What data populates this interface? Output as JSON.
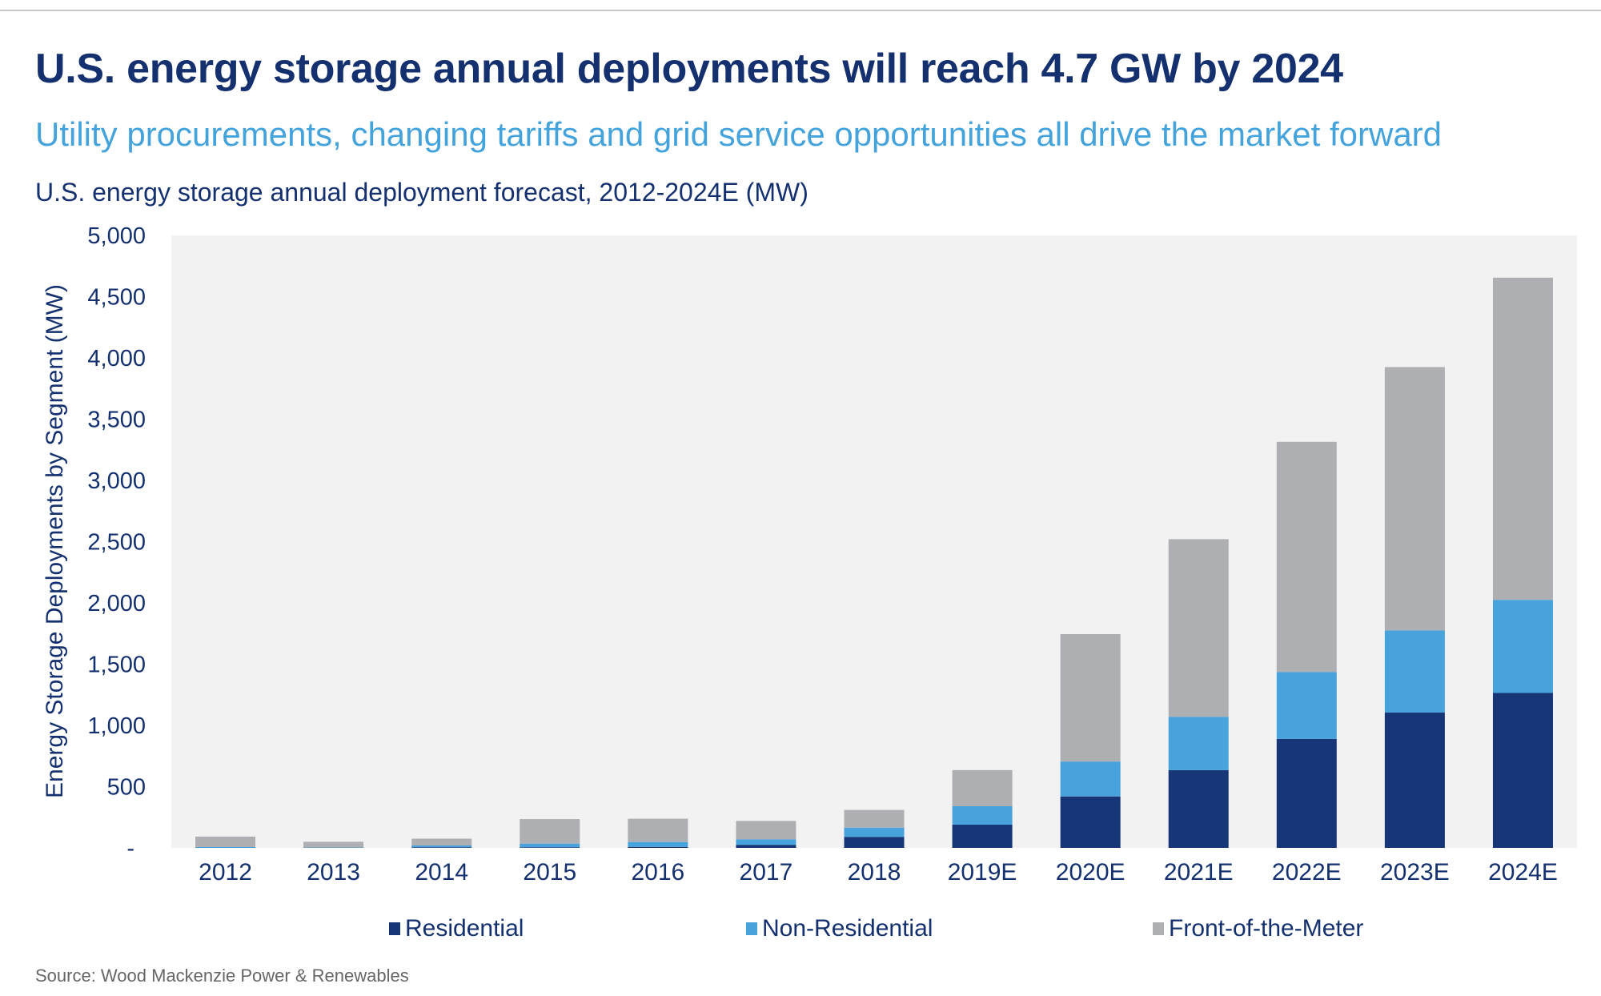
{
  "header": {
    "title": "U.S. energy storage annual deployments will reach 4.7 GW by 2024",
    "subtitle": "Utility procurements, changing tariffs and grid service opportunities all drive the market forward",
    "chart_title": "U.S. energy storage annual deployment forecast, 2012-2024E (MW)"
  },
  "footer": {
    "source": "Source: Wood Mackenzie Power & Renewables"
  },
  "colors": {
    "Residential": "#163677",
    "Non-Residential": "#48a3dd",
    "Front-of-the-Meter": "#aeafb3",
    "plot_background": "#f2f2f2",
    "title": "#14306e",
    "subtitle": "#45a3dc"
  },
  "chart_data": {
    "type": "bar",
    "stacked": true,
    "title": "U.S. energy storage annual deployment forecast, 2012-2024E (MW)",
    "xlabel": "",
    "ylabel": "Energy Storage Deployments by Segment (MW)",
    "ylim": [
      0,
      5000
    ],
    "yticks": [
      0,
      500,
      1000,
      1500,
      2000,
      2500,
      3000,
      3500,
      4000,
      4500,
      5000
    ],
    "ytick_labels": [
      "-",
      "500",
      "1,000",
      "1,500",
      "2,000",
      "2,500",
      "3,000",
      "3,500",
      "4,000",
      "4,500",
      "5,000"
    ],
    "grid": false,
    "legend": "bottom",
    "categories": [
      "2012",
      "2013",
      "2014",
      "2015",
      "2016",
      "2017",
      "2018",
      "2019E",
      "2020E",
      "2021E",
      "2022E",
      "2023E",
      "2024E"
    ],
    "series": [
      {
        "name": "Residential",
        "values": [
          2,
          2,
          5,
          5,
          8,
          25,
          90,
          190,
          420,
          635,
          890,
          1105,
          1265
        ]
      },
      {
        "name": "Non-Residential",
        "values": [
          5,
          3,
          15,
          30,
          40,
          45,
          75,
          150,
          285,
          435,
          545,
          670,
          760
        ]
      },
      {
        "name": "Front-of-the-Meter",
        "values": [
          85,
          45,
          55,
          200,
          190,
          150,
          145,
          295,
          1040,
          1450,
          1880,
          2150,
          2630
        ]
      }
    ]
  }
}
